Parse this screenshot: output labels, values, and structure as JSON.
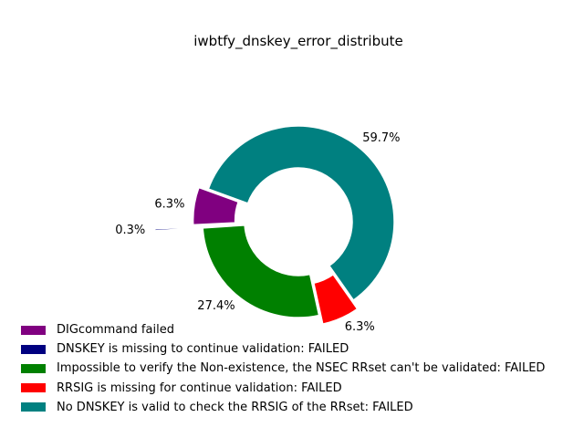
{
  "chart_data": {
    "type": "pie",
    "title": "iwbtfy_dnskey_error_distribute",
    "start_angle": 160,
    "series": [
      {
        "name": "DIGcommand failed",
        "value": 6.3,
        "label": "6.3%",
        "color": "#800080",
        "explode": 0.1
      },
      {
        "name": "DNSKEY is missing to continue validation: FAILED",
        "value": 0.3,
        "label": "0.3%",
        "color": "#000080",
        "explode": 0.5
      },
      {
        "name": "Impossible to verify the Non-existence, the NSEC RRset can't be validated: FAILED",
        "value": 27.4,
        "label": "27.4%",
        "color": "#008000",
        "explode": 0.0
      },
      {
        "name": "RRSIG is missing for continue validation: FAILED",
        "value": 6.3,
        "label": "6.3%",
        "color": "#ff0000",
        "explode": 0.1
      },
      {
        "name": "No DNSKEY is valid to check the RRSIG of the RRset: FAILED",
        "value": 59.7,
        "label": "59.7%",
        "color": "#008080",
        "explode": 0.0
      }
    ],
    "legend_position": "lower-left"
  }
}
